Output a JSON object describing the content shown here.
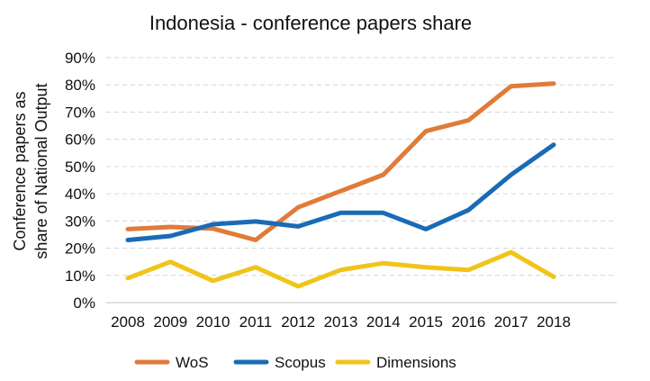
{
  "chart_data": {
    "type": "line",
    "title": "Indonesia - conference papers share",
    "ylabel_lines": [
      "Conference papers as",
      "share of National Output"
    ],
    "xlabel": "",
    "categories": [
      "2008",
      "2009",
      "2010",
      "2011",
      "2012",
      "2013",
      "2014",
      "2015",
      "2016",
      "2017",
      "2018"
    ],
    "y_ticks": [
      "0%",
      "10%",
      "20%",
      "30%",
      "40%",
      "50%",
      "60%",
      "70%",
      "80%",
      "90%"
    ],
    "ylim": [
      0,
      90
    ],
    "grid": "horizontal-dashed",
    "legend_position": "bottom",
    "series": [
      {
        "name": "WoS",
        "color": "#E07B39",
        "values": [
          27,
          27.8,
          27.2,
          23,
          35,
          41,
          47,
          63,
          67,
          79.5,
          80.5
        ]
      },
      {
        "name": "Scopus",
        "color": "#1A6BB5",
        "values": [
          23,
          24.5,
          28.8,
          29.8,
          28,
          33,
          33,
          27,
          34,
          47,
          58
        ]
      },
      {
        "name": "Dimensions",
        "color": "#F0C419",
        "values": [
          9,
          15,
          8,
          13,
          6,
          12,
          14.5,
          13,
          12,
          18.5,
          9.5
        ]
      }
    ]
  }
}
